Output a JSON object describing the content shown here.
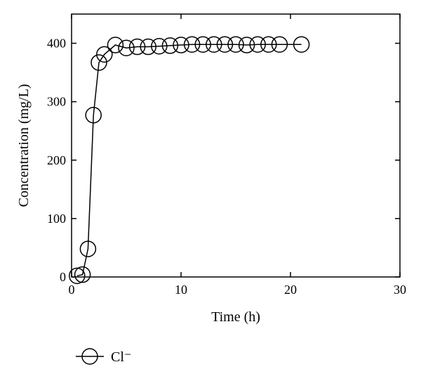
{
  "chart_data": {
    "type": "line",
    "xlabel": "Time (h)",
    "ylabel": "Concentration (mg/L)",
    "xlim": [
      0,
      30
    ],
    "ylim": [
      0,
      450
    ],
    "xticks": [
      0,
      10,
      20,
      30
    ],
    "yticks": [
      0,
      100,
      200,
      300,
      400
    ],
    "grid": false,
    "legend_position": "bottom-left",
    "marker": "open-circle",
    "series": [
      {
        "name": "Cl⁻",
        "color": "#000000",
        "x": [
          0.5,
          1.0,
          1.5,
          2.0,
          2.5,
          3.0,
          4.0,
          5.0,
          6.0,
          7.0,
          8.0,
          9.0,
          10.0,
          11.0,
          12.0,
          13.0,
          14.0,
          15.0,
          16.0,
          17.0,
          18.0,
          19.0,
          21.0
        ],
        "y": [
          2,
          4,
          48,
          277,
          367,
          381,
          397,
          392,
          394,
          394,
          395,
          396,
          397,
          398,
          398,
          398,
          398,
          398,
          397,
          398,
          398,
          398,
          398
        ]
      }
    ]
  }
}
